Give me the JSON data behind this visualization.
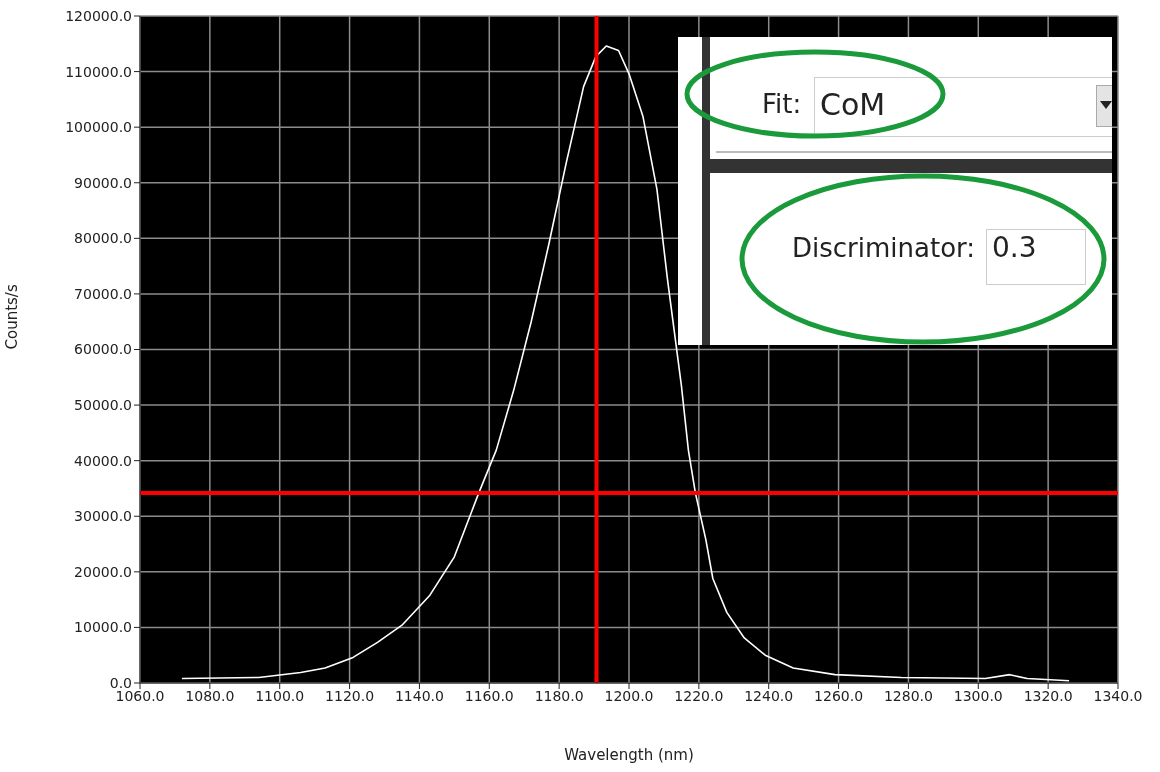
{
  "chart_data": {
    "type": "line",
    "xlabel": "Wavelength (nm)",
    "ylabel": "Counts/s",
    "xlim": [
      1060,
      1340
    ],
    "xticks": [
      {
        "value": 1060,
        "label": "1060.0"
      },
      {
        "value": 1080,
        "label": "1080.0"
      },
      {
        "value": 1100,
        "label": "1100.0"
      },
      {
        "value": 1120,
        "label": "1120.0"
      },
      {
        "value": 1140,
        "label": "1140.0"
      },
      {
        "value": 1160,
        "label": "1160.0"
      },
      {
        "value": 1180,
        "label": "1180.0"
      },
      {
        "value": 1200,
        "label": "1200.0"
      },
      {
        "value": 1220,
        "label": "1220.0"
      },
      {
        "value": 1240,
        "label": "1240.0"
      },
      {
        "value": 1260,
        "label": "1260.0"
      },
      {
        "value": 1280,
        "label": "1280.0"
      },
      {
        "value": 1300,
        "label": "1300.0"
      },
      {
        "value": 1320,
        "label": "1320.0"
      },
      {
        "value": 1340,
        "label": "1340.0"
      }
    ],
    "ylim": [
      0,
      120000
    ],
    "yticks": [
      {
        "value": 0,
        "label": "0.0"
      },
      {
        "value": 10000,
        "label": "10000.0"
      },
      {
        "value": 20000,
        "label": "20000.0"
      },
      {
        "value": 30000,
        "label": "30000.0"
      },
      {
        "value": 40000,
        "label": "40000.0"
      },
      {
        "value": 50000,
        "label": "50000.0"
      },
      {
        "value": 60000,
        "label": "60000.0"
      },
      {
        "value": 70000,
        "label": "70000.0"
      },
      {
        "value": 80000,
        "label": "80000.0"
      },
      {
        "value": 90000,
        "label": "90000.0"
      },
      {
        "value": 100000,
        "label": "100000.0"
      },
      {
        "value": 110000,
        "label": "110000.0"
      },
      {
        "value": 120000,
        "label": "120000.0"
      }
    ],
    "grid": true,
    "marker": "none",
    "line_style": "solid",
    "series": [
      {
        "color": "#ffffff",
        "x": [
          1072,
          1094,
          1106,
          1113,
          1121,
          1128,
          1135,
          1143,
          1150,
          1157,
          1162,
          1167,
          1172,
          1177,
          1182,
          1187,
          1190.5,
          1193.5,
          1197,
          1200,
          1204,
          1208,
          1211,
          1215,
          1217,
          1219,
          1222,
          1224,
          1228,
          1233,
          1239,
          1247,
          1259,
          1278,
          1302,
          1309,
          1314,
          1326
        ],
        "values": [
          800,
          1000,
          1900,
          2700,
          4600,
          7300,
          10400,
          15800,
          22700,
          34200,
          41900,
          52700,
          65000,
          78800,
          93500,
          107300,
          112700,
          114600,
          113800,
          109600,
          101900,
          88800,
          72700,
          53500,
          41900,
          34200,
          25800,
          18800,
          12700,
          8100,
          5000,
          2700,
          1500,
          1000,
          800,
          1500,
          800,
          400
        ]
      }
    ],
    "ref_lines": [
      {
        "axis": "x",
        "value": 1190.7,
        "color": "#ff0000"
      },
      {
        "axis": "y",
        "value": 34200,
        "color": "#ff0000"
      }
    ],
    "annotations": [
      "Fit:",
      "CoM",
      "Discriminator:",
      "0.3"
    ]
  }
}
